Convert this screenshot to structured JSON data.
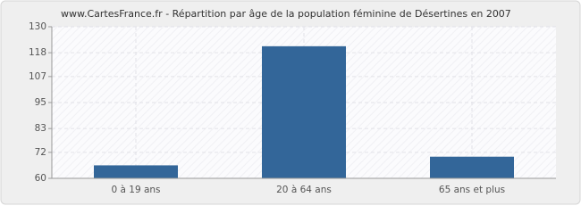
{
  "chart_data": {
    "type": "bar",
    "title": "www.CartesFrance.fr - Répartition par âge de la population féminine de Désertines en 2007",
    "categories": [
      "0 à 19 ans",
      "20 à 64 ans",
      "65 ans et plus"
    ],
    "values": [
      66,
      121,
      70
    ],
    "color": "#336699",
    "ylim": [
      60,
      130
    ],
    "yticks": [
      60,
      72,
      83,
      95,
      107,
      118,
      130
    ],
    "grid": true
  }
}
